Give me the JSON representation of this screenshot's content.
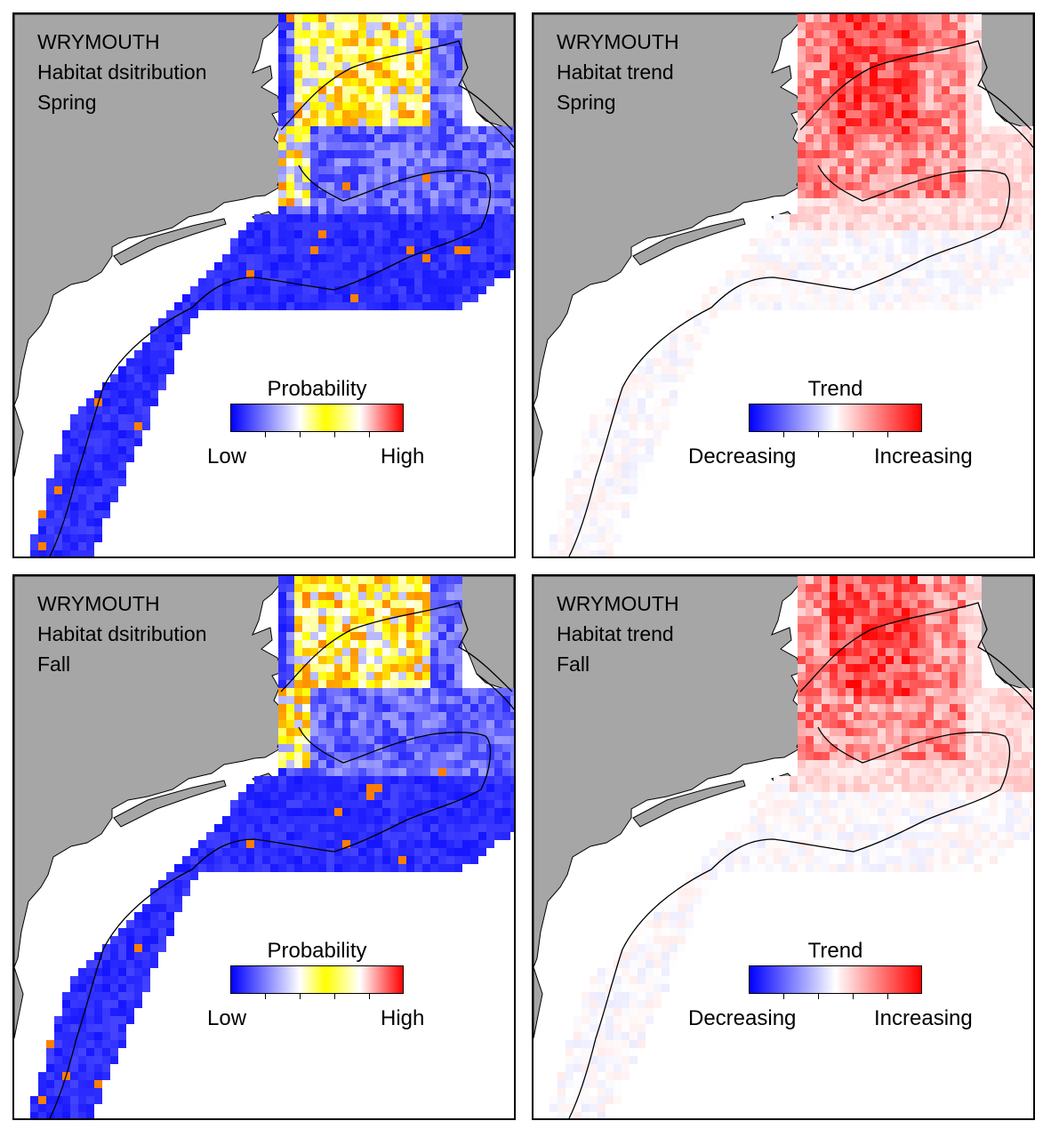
{
  "panels": [
    {
      "species": "WRYMOUTH",
      "subtitle": "Habitat dsitribution",
      "season": "Spring",
      "legend": {
        "title": "Probability",
        "low": "Low",
        "high": "High"
      },
      "variant": "probability"
    },
    {
      "species": "WRYMOUTH",
      "subtitle": "Habitat trend",
      "season": "Spring",
      "legend": {
        "title": "Trend",
        "low": "Decreasing",
        "high": "Increasing"
      },
      "variant": "trend"
    },
    {
      "species": "WRYMOUTH",
      "subtitle": "Habitat dsitribution",
      "season": "Fall",
      "legend": {
        "title": "Probability",
        "low": "Low",
        "high": "High"
      },
      "variant": "probability"
    },
    {
      "species": "WRYMOUTH",
      "subtitle": "Habitat trend",
      "season": "Fall",
      "legend": {
        "title": "Trend",
        "low": "Decreasing",
        "high": "Increasing"
      },
      "variant": "trend"
    }
  ],
  "colors": {
    "land": "#a6a6a6",
    "ocean": "#ffffff",
    "probability_low": "#0000ff",
    "probability_mid": "#ffff00",
    "probability_high": "#ff0000",
    "trend_decreasing": "#0000ff",
    "trend_neutral": "#ffffff",
    "trend_increasing": "#ff0000"
  }
}
